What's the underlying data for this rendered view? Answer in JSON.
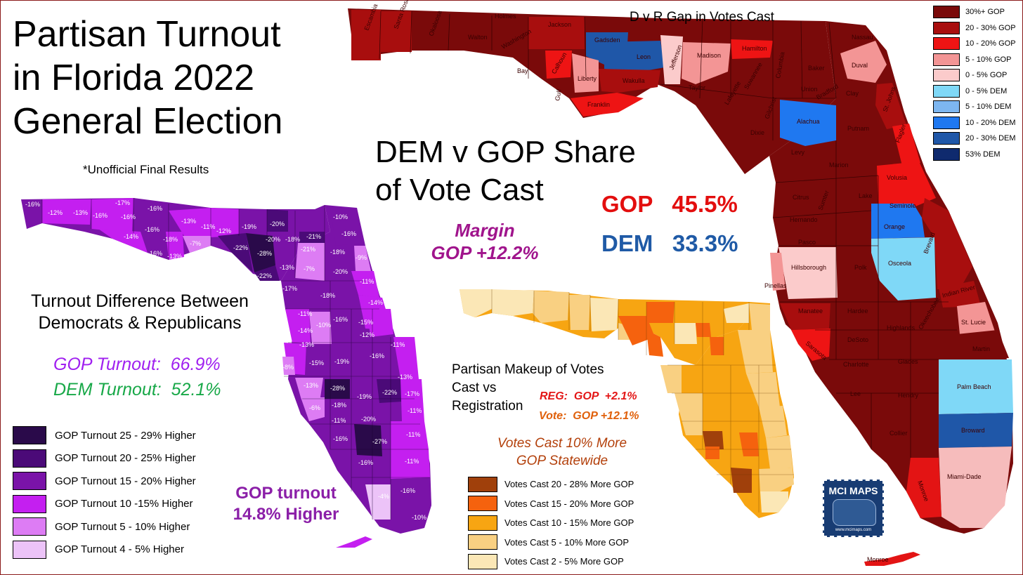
{
  "title_lines": [
    "Partisan Turnout",
    "in Florida 2022",
    "General Election"
  ],
  "subtitle": "*Unofficial Final Results",
  "turnout_map": {
    "heading_lines": [
      "Turnout Difference Between",
      "Democrats & Republicans"
    ],
    "gop_turnout": "GOP Turnout:  66.9%",
    "dem_turnout": "DEM Turnout:  52.1%",
    "summary_lines": [
      "GOP turnout",
      "14.8% Higher"
    ],
    "legend": [
      {
        "label": "GOP Turnout 25 - 29% Higher",
        "color": "#2a0a4a"
      },
      {
        "label": "GOP Turnout 20 - 25% Higher",
        "color": "#4b0a78"
      },
      {
        "label": "GOP Turnout 15 - 20% Higher",
        "color": "#7a13a8"
      },
      {
        "label": "GOP Turnout 10 -15% Higher",
        "color": "#c41ff0"
      },
      {
        "label": "GOP Turnout 5 - 10% Higher",
        "color": "#dd7cf4"
      },
      {
        "label": "GOP Turnout 4 - 5% Higher",
        "color": "#ecc3f8"
      }
    ],
    "value_labels": [
      "-16%",
      "-12%",
      "-13%",
      "-16%",
      "-17%",
      "-16%",
      "-16%",
      "-14%",
      "-16%",
      "-18%",
      "-16%",
      "-13%",
      "-13%",
      "-11%",
      "-12%",
      "-19%",
      "-20%",
      "-20%",
      "-18%",
      "-21%",
      "-10%",
      "-16%",
      "-7%",
      "-22%",
      "-28%",
      "-21%",
      "-18%",
      "-13%",
      "-7%",
      "-9%",
      "-22%",
      "-17%",
      "-20%",
      "-11%",
      "-18%",
      "-14%",
      "-11%",
      "-14%",
      "-10%",
      "-16%",
      "-15%",
      "-12%",
      "-13%",
      "-11%",
      "-15%",
      "-19%",
      "-16%",
      "-8%",
      "-13%",
      "-13%",
      "-28%",
      "-19%",
      "-22%",
      "-17%",
      "-6%",
      "-18%",
      "-11%",
      "-20%",
      "-11%",
      "-16%",
      "-27%",
      "-11%",
      "-16%",
      "-11%",
      "-16%",
      "-4%",
      "-10%"
    ]
  },
  "share_map": {
    "heading_lines": [
      "DEM v GOP Share",
      "of Vote Cast"
    ],
    "margin_lines": [
      "Margin",
      "GOP +12.2%"
    ],
    "gop_share": "GOP   45.5%",
    "dem_share": "DEM   33.3%",
    "gap_title": "D v R Gap in Votes Cast",
    "legend": [
      {
        "label": "30%+ GOP",
        "color": "#7a0a0a"
      },
      {
        "label": "20 - 30% GOP",
        "color": "#a80e0e"
      },
      {
        "label": "10 - 20% GOP",
        "color": "#ee1414"
      },
      {
        "label": "5 - 10% GOP",
        "color": "#f39595"
      },
      {
        "label": "0 - 5% GOP",
        "color": "#fbcbcb"
      },
      {
        "label": "0 - 5% DEM",
        "color": "#7fd8f7"
      },
      {
        "label": "5 - 10% DEM",
        "color": "#7db6f0"
      },
      {
        "label": "10 - 20% DEM",
        "color": "#1f78f0"
      },
      {
        "label": "20 - 30% DEM",
        "color": "#1f57a8"
      },
      {
        "label": "53% DEM",
        "color": "#0f2a6e"
      }
    ],
    "county_labels": [
      "Escambia",
      "Santa Rosa",
      "Okaloosa",
      "Walton",
      "Holmes",
      "Washington",
      "Jackson",
      "Bay",
      "Calhoun",
      "Gulf",
      "Liberty",
      "Gadsden",
      "Leon",
      "Wakulla",
      "Franklin",
      "Jefferson",
      "Madison",
      "Hamilton",
      "Nassau",
      "Duval",
      "Taylor",
      "Lafayette",
      "Suwannee",
      "Columbia",
      "Baker",
      "Union",
      "Bradford",
      "Clay",
      "St. Johns",
      "Alachua",
      "Putnam",
      "Flagler",
      "Dixie",
      "Gilchrist",
      "Levy",
      "Marion",
      "Volusia",
      "Citrus",
      "Sumter",
      "Lake",
      "Seminole",
      "Hernando",
      "Orange",
      "Brevard",
      "Pasco",
      "Osceola",
      "Pinellas",
      "Hillsborough",
      "Polk",
      "Indian River",
      "Manatee",
      "Hardee",
      "Highlands",
      "Okeechobee",
      "St. Lucie",
      "Sarasota",
      "DeSoto",
      "Martin",
      "Charlotte",
      "Glades",
      "Palm Beach",
      "Lee",
      "Hendry",
      "Broward",
      "Collier",
      "Miami-Dade",
      "Monroe",
      "Monroe"
    ]
  },
  "makeup_map": {
    "heading_lines": [
      "Partisan Makeup of Votes",
      "Cast vs",
      "Registration"
    ],
    "reg_line": "REG:  GOP  +2.1%",
    "vote_line": "Vote:  GOP +12.1%",
    "statewide_lines": [
      "Votes Cast 10% More",
      "GOP Statewide"
    ],
    "legend": [
      {
        "label": "Votes Cast 20 - 28% More GOP",
        "color": "#a0400b"
      },
      {
        "label": "Votes Cast 15 - 20% More GOP",
        "color": "#f5620e"
      },
      {
        "label": "Votes Cast 10 - 15% More GOP",
        "color": "#f7a512"
      },
      {
        "label": "Votes Cast 5 - 10% More GOP",
        "color": "#f9d082"
      },
      {
        "label": "Votes Cast 2 - 5% More GOP",
        "color": "#fbe7b6"
      }
    ]
  },
  "brand": {
    "name": "MCI MAPS",
    "site": "www.mcimaps.com"
  }
}
